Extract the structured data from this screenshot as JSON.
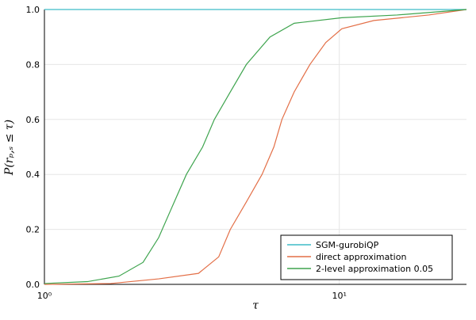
{
  "chart_data": {
    "type": "line",
    "xlabel": "τ",
    "ylabel": "P(rₚ,ₛ ≤ τ)",
    "xscale": "log",
    "xlim": [
      1,
      27
    ],
    "ylim": [
      0,
      1
    ],
    "xticks": [
      {
        "value": 1,
        "label": "10⁰"
      },
      {
        "value": 10,
        "label": "10¹"
      }
    ],
    "yticks": [
      {
        "value": 0,
        "label": "0.0"
      },
      {
        "value": 0.2,
        "label": "0.2"
      },
      {
        "value": 0.4,
        "label": "0.4"
      },
      {
        "value": 0.6,
        "label": "0.6"
      },
      {
        "value": 0.8,
        "label": "0.8"
      },
      {
        "value": 1,
        "label": "1.0"
      }
    ],
    "grid": true,
    "legend": "bottom-right",
    "series": [
      {
        "name": "SGM-gurobiQP",
        "color": "#3dbcc7",
        "x": [
          1,
          27
        ],
        "values": [
          1,
          1
        ]
      },
      {
        "name": "direct approximation",
        "color": "#e36f47",
        "x": [
          1,
          1.68,
          2.44,
          3.33,
          3.9,
          4.27,
          4.84,
          5.47,
          6.0,
          6.39,
          7.03,
          7.95,
          9.0,
          10.2,
          13.1,
          20.1,
          27
        ],
        "values": [
          0,
          0.003,
          0.02,
          0.04,
          0.1,
          0.2,
          0.3,
          0.4,
          0.5,
          0.6,
          0.7,
          0.8,
          0.88,
          0.93,
          0.96,
          0.98,
          1.0
        ]
      },
      {
        "name": "2-level approximation 0.05",
        "color": "#3ea44e",
        "x": [
          1,
          1.4,
          1.79,
          2.16,
          2.44,
          2.68,
          3.03,
          3.44,
          3.77,
          4.27,
          4.84,
          5.82,
          7.03,
          10.2,
          15.7,
          27
        ],
        "values": [
          0.003,
          0.01,
          0.03,
          0.08,
          0.17,
          0.27,
          0.4,
          0.5,
          0.6,
          0.7,
          0.8,
          0.9,
          0.95,
          0.97,
          0.98,
          1.0
        ]
      }
    ]
  }
}
